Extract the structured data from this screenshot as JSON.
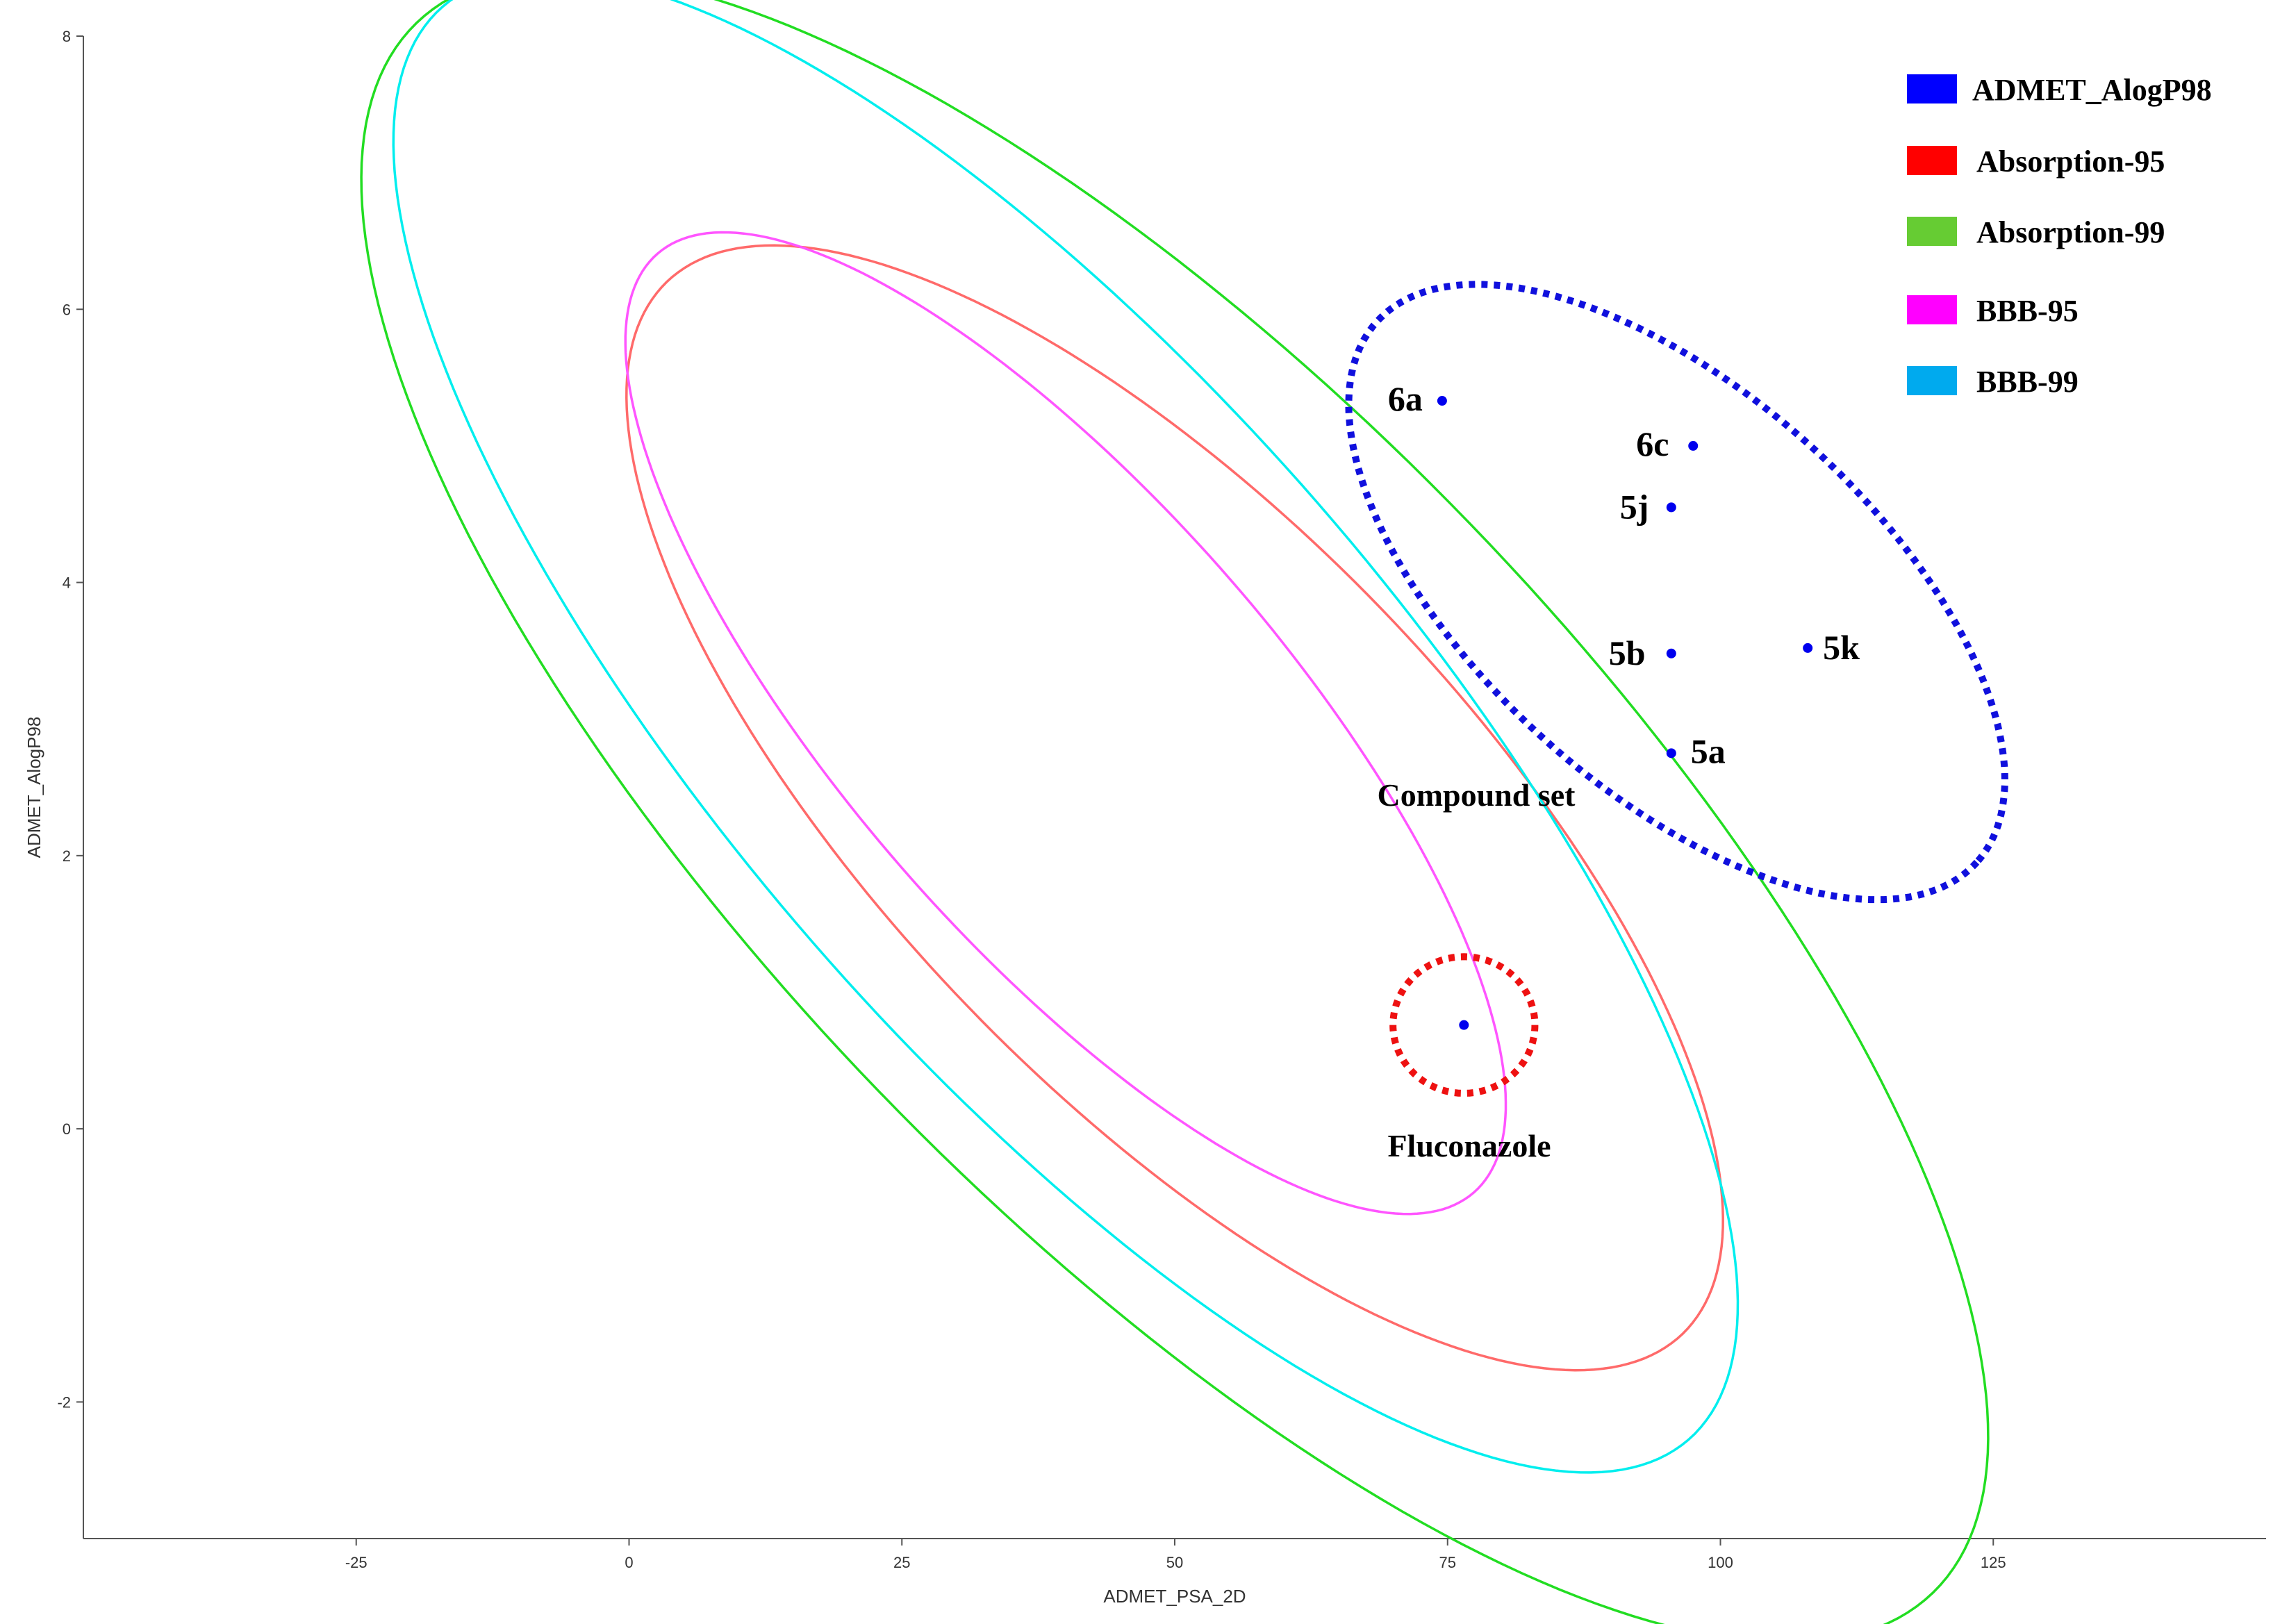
{
  "chart_data": {
    "type": "scatter",
    "title": "",
    "xlabel": "ADMET_PSA_2D",
    "ylabel": "ADMET_AlogP98",
    "xlim": [
      -50,
      150
    ],
    "ylim": [
      -3,
      8
    ],
    "xticks": [
      "-25",
      "0",
      "25",
      "50",
      "75",
      "100",
      "125"
    ],
    "yticks": [
      "-2",
      "0",
      "2",
      "4",
      "6",
      "8"
    ],
    "grid": false,
    "legend_position": "top-right",
    "legend": [
      {
        "name": "ADMET_AlogP98",
        "color": "#0000ff"
      },
      {
        "name": "Absorption-95",
        "color": "#ff0000"
      },
      {
        "name": "Absorption-99",
        "color": "#66cc33"
      },
      {
        "name": "BBB-95",
        "color": "#ff00ff"
      },
      {
        "name": "BBB-99",
        "color": "#00aaee"
      }
    ],
    "ellipses": [
      {
        "name": "Absorption-95",
        "color": "#ff6a6a",
        "center_x": 50,
        "center_y": 2.35,
        "semi_axes": [
          67,
          2.1
        ],
        "angle_deg": -46
      },
      {
        "name": "Absorption-99",
        "color": "#22dd22",
        "center_x": 50,
        "center_y": 2.35,
        "semi_axes": [
          100,
          3.0
        ],
        "angle_deg": -46
      },
      {
        "name": "BBB-95",
        "color": "#ff55ff",
        "center_x": 40,
        "center_y": 2.97,
        "semi_axes": [
          57,
          1.6
        ],
        "angle_deg": -49
      },
      {
        "name": "BBB-99",
        "color": "#00eeee",
        "center_x": 40,
        "center_y": 2.97,
        "semi_axes": [
          87,
          2.45
        ],
        "angle_deg": -49
      }
    ],
    "highlights": [
      {
        "name": "Compound set",
        "color": "#1010dd",
        "style": "dotted",
        "center_x": 96,
        "center_y": 3.93,
        "semi_axes": [
          37,
          1.45
        ],
        "angle_deg": -42
      },
      {
        "name": "Fluconazole",
        "color": "#ee1111",
        "style": "dotted",
        "center_x": 76.5,
        "center_y": 0.76,
        "radius": 6.5,
        "radius_y": 0.5
      }
    ],
    "points": [
      {
        "label": "6a",
        "x": 74.5,
        "y": 5.33
      },
      {
        "label": "6c",
        "x": 97.5,
        "y": 5.0
      },
      {
        "label": "5j",
        "x": 95.5,
        "y": 4.55
      },
      {
        "label": "5b",
        "x": 95.5,
        "y": 3.48
      },
      {
        "label": "5k",
        "x": 108,
        "y": 3.52
      },
      {
        "label": "5a",
        "x": 95.5,
        "y": 2.75
      },
      {
        "label": "",
        "x": 76.5,
        "y": 0.76
      }
    ],
    "annotations": [
      "Compound set",
      "Fluconazole"
    ]
  }
}
